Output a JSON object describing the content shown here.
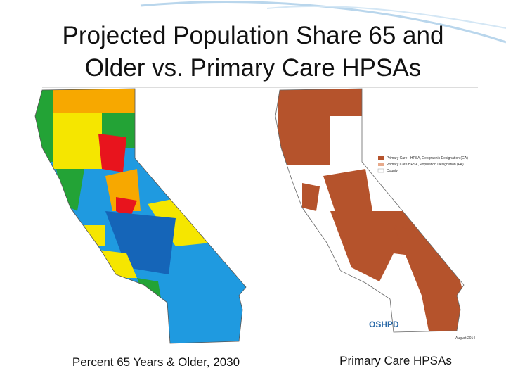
{
  "header": {
    "title_lines": [
      "Projected Population Share 65 and",
      "Older vs. Primary Care HPSAs"
    ]
  },
  "left_map": {
    "caption": "Percent 65 Years & Older, 2030"
  },
  "right_map": {
    "caption": "Primary Care HPSAs",
    "legend": [
      "Primary Care - HPSA, Geographic Designation (GA)",
      "Primary Care HPSA, Population Designation (PA)",
      "County"
    ],
    "agency": "OSHPD",
    "date": "August 2014"
  }
}
